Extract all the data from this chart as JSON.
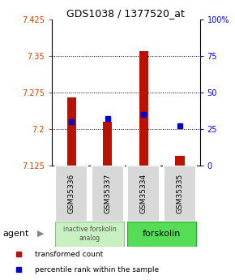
{
  "title": "GDS1038 / 1377520_at",
  "samples": [
    "GSM35336",
    "GSM35337",
    "GSM35334",
    "GSM35335"
  ],
  "bar_values": [
    7.265,
    7.215,
    7.36,
    7.145
  ],
  "percentile_values": [
    30,
    32,
    35,
    27
  ],
  "ymin": 7.125,
  "ymax": 7.425,
  "yticks": [
    7.125,
    7.2,
    7.275,
    7.35,
    7.425
  ],
  "right_yticks": [
    0,
    25,
    50,
    75,
    100
  ],
  "bar_color": "#bb1100",
  "blue_color": "#0000cc",
  "group1_label": "inactive forskolin\nanalog",
  "group2_label": "forskolin",
  "group1_indices": [
    0,
    1
  ],
  "group2_indices": [
    2,
    3
  ],
  "agent_label": "agent",
  "legend1": "transformed count",
  "legend2": "percentile rank within the sample",
  "bar_width": 0.25
}
